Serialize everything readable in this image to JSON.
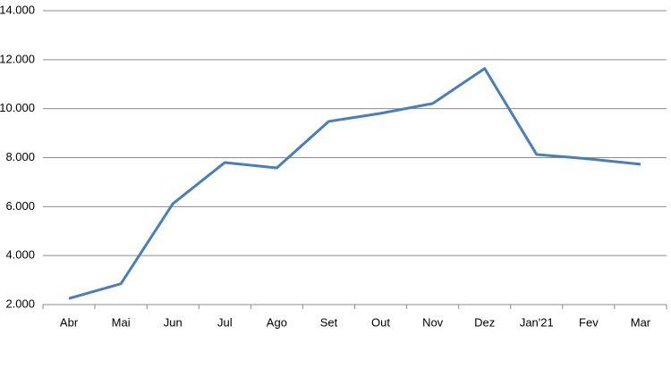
{
  "chart_data": {
    "type": "line",
    "categories": [
      "Abr",
      "Mai",
      "Jun",
      "Jul",
      "Ago",
      "Set",
      "Out",
      "Nov",
      "Dez",
      "Jan'21",
      "Fev",
      "Mar"
    ],
    "values": [
      2250,
      2850,
      6120,
      7800,
      7580,
      9480,
      9810,
      10210,
      11640,
      8130,
      7950,
      7730
    ],
    "color": "#4a7ebb",
    "ylim": [
      2000,
      14000
    ],
    "yticks": [
      {
        "value": 2000,
        "label": "2.000"
      },
      {
        "value": 4000,
        "label": "4.000"
      },
      {
        "value": 6000,
        "label": "6.000"
      },
      {
        "value": 8000,
        "label": "8.000"
      },
      {
        "value": 10000,
        "label": "10.000"
      },
      {
        "value": 12000,
        "label": "12.000"
      },
      {
        "value": 14000,
        "label": "14.000"
      }
    ],
    "grid": true
  }
}
